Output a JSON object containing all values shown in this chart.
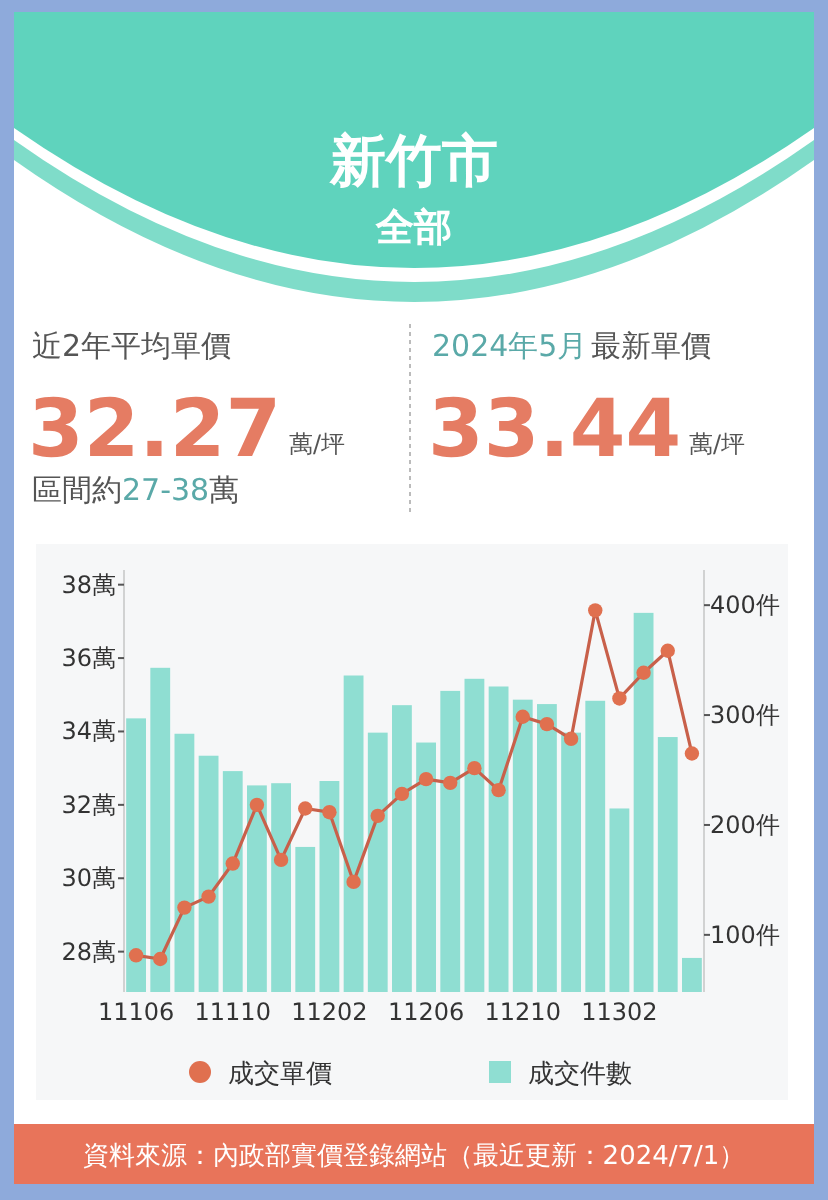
{
  "chart_data": {
    "type": "bar",
    "title": "新竹市",
    "subtitle": "全部",
    "annotations": [
      "近2年平均單價",
      "32.27",
      "萬/坪",
      "區間約",
      "27-38",
      "萬",
      "2024年5月",
      "最新單價",
      "33.44",
      "萬/坪",
      "資料來源：內政部實價登錄網站（最近更新：2024/7/1）"
    ],
    "categories": [
      "11106",
      null,
      null,
      null,
      "11110",
      null,
      null,
      null,
      "11202",
      null,
      null,
      null,
      "11206",
      null,
      null,
      null,
      "11210",
      null,
      null,
      null,
      "11302",
      null,
      null,
      null
    ],
    "series": [
      {
        "name": "成交件數",
        "color": "#8fded2",
        "axis": "y2",
        "values": [
          297,
          343,
          283,
          263,
          249,
          236,
          238,
          180,
          240,
          336,
          284,
          309,
          275,
          322,
          333,
          326,
          314,
          310,
          284,
          313,
          215,
          393,
          280,
          79
        ]
      },
      {
        "name": "成交單價",
        "type": "line",
        "color": "#e0704f",
        "marker": "circle",
        "values": [
          27.9,
          27.8,
          29.2,
          29.5,
          30.4,
          32.0,
          30.5,
          31.9,
          31.8,
          29.9,
          31.7,
          32.3,
          32.7,
          32.6,
          33.0,
          32.4,
          34.4,
          34.2,
          33.8,
          37.3,
          34.9,
          35.6,
          36.2,
          33.4
        ]
      }
    ],
    "ylim": [
      26.9,
      38.4
    ],
    "yticks": [
      {
        "value": 28,
        "label": "28萬"
      },
      {
        "value": 30,
        "label": "30萬"
      },
      {
        "value": 32,
        "label": "32萬"
      },
      {
        "value": 34,
        "label": "34萬"
      },
      {
        "value": 36,
        "label": "36萬"
      },
      {
        "value": 38,
        "label": "38萬"
      }
    ],
    "y2lim": [
      48,
      432
    ],
    "y2ticks": [
      {
        "value": 100,
        "label": "100件"
      },
      {
        "value": 200,
        "label": "200件"
      },
      {
        "value": 300,
        "label": "300件"
      },
      {
        "value": 400,
        "label": "400件"
      }
    ],
    "legend": "bottom"
  }
}
